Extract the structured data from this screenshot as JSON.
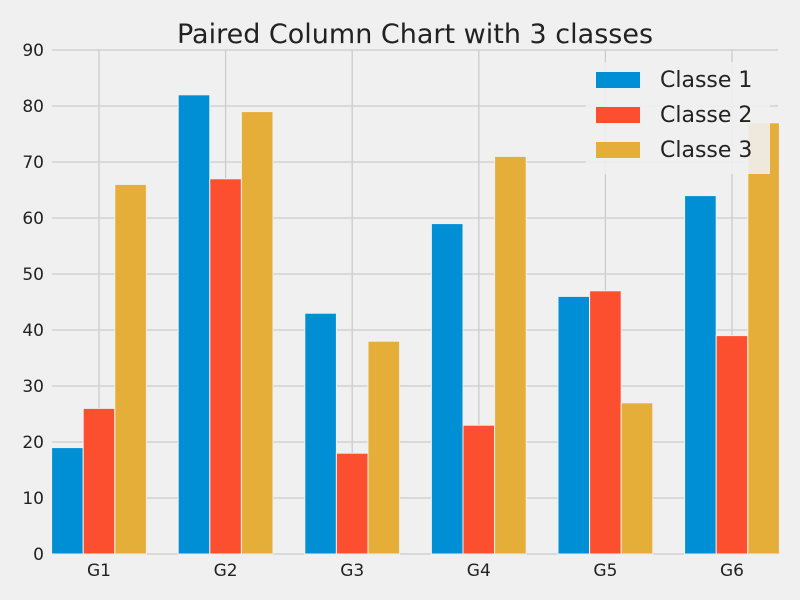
{
  "chart_data": {
    "type": "bar",
    "title": "Paired Column Chart with 3 classes",
    "xlabel": "",
    "ylabel": "",
    "categories": [
      "G1",
      "G2",
      "G3",
      "G4",
      "G5",
      "G6"
    ],
    "series": [
      {
        "name": "Classe 1",
        "color": "#008fd5",
        "values": [
          19,
          82,
          43,
          59,
          46,
          64
        ]
      },
      {
        "name": "Classe 2",
        "color": "#fc4f30",
        "values": [
          26,
          67,
          18,
          23,
          47,
          39
        ]
      },
      {
        "name": "Classe 3",
        "color": "#e5ae38",
        "values": [
          66,
          79,
          38,
          71,
          27,
          77
        ]
      }
    ],
    "ylim": [
      0,
      90
    ],
    "yticks": [
      0,
      10,
      20,
      30,
      40,
      50,
      60,
      70,
      80,
      90
    ],
    "grid": true,
    "legend_position": "top-right",
    "background": "#f0f0f0"
  }
}
